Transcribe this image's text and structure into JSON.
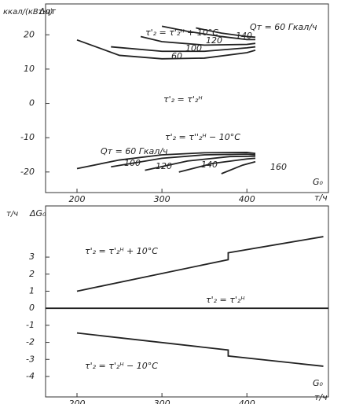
{
  "chart_data": [
    {
      "type": "line",
      "y_label": "ккал/(кВт·ч)",
      "y_symbol": "Δqт",
      "x_label": "G₀",
      "x_unit": "т/ч",
      "xlim": [
        163,
        496
      ],
      "ylim": [
        -26,
        29
      ],
      "xticks": [
        200,
        300,
        400
      ],
      "yticks": [
        20,
        10,
        0,
        -10,
        -20
      ],
      "annotations": [
        "τ'₂ = τ'₂ᴴ + 10°C",
        "τ'₂ = τ'₂ᴴ",
        "τ'₂ = τ''₂ᴴ − 10°C"
      ],
      "series": [
        {
          "name": "60",
          "x": [
            200,
            250,
            300,
            350,
            400,
            410
          ],
          "values": [
            18.5,
            14,
            13,
            13.2,
            14.8,
            15.5
          ]
        },
        {
          "name": "100",
          "x": [
            240,
            300,
            350,
            400,
            410
          ],
          "values": [
            16.5,
            15.2,
            15.2,
            16.2,
            16.5
          ]
        },
        {
          "name": "120",
          "x": [
            275,
            300,
            350,
            400,
            410
          ],
          "values": [
            19.5,
            18,
            17,
            17.2,
            17.5
          ]
        },
        {
          "name": "140",
          "x": [
            300,
            330,
            370,
            400,
            410
          ],
          "values": [
            22.5,
            21,
            19.5,
            18.6,
            18.6
          ]
        },
        {
          "name": "Qт = 60 Гкал/ч",
          "x": [
            340,
            370,
            400,
            410
          ],
          "values": [
            22,
            20.5,
            19.5,
            19.3
          ]
        },
        {
          "name": "Qт = 60 Гкал/ч",
          "x": [
            200,
            250,
            300,
            350,
            400,
            410
          ],
          "values": [
            -19,
            -16.5,
            -15,
            -14.4,
            -14.3,
            -14.6
          ]
        },
        {
          "name": "100",
          "x": [
            240,
            300,
            350,
            400,
            410
          ],
          "values": [
            -18.5,
            -16,
            -15,
            -14.8,
            -15
          ]
        },
        {
          "name": "120",
          "x": [
            280,
            330,
            380,
            410
          ],
          "values": [
            -19.5,
            -16.8,
            -15.5,
            -15.4
          ]
        },
        {
          "name": "140",
          "x": [
            320,
            360,
            400,
            410
          ],
          "values": [
            -20,
            -17.5,
            -16.2,
            -16
          ]
        },
        {
          "name": "160",
          "x": [
            370,
            395,
            410
          ],
          "values": [
            -20.5,
            -18,
            -17
          ]
        }
      ]
    },
    {
      "type": "line",
      "y_label": "т/ч",
      "y_symbol": "ΔG₀",
      "x_label": "G₀",
      "x_unit": "т/ч",
      "xlim": [
        163,
        496
      ],
      "ylim": [
        -5.2,
        6.0
      ],
      "xticks": [
        200,
        300,
        400
      ],
      "yticks": [
        3,
        2,
        1,
        0,
        -1,
        -2,
        -3,
        -4
      ],
      "annotations": [
        "τ'₂ = τ'₂ᴴ + 10°C",
        "τ'₂ = τ'₂ᴴ",
        "τ'₂ = τ'₂ᴴ − 10°C"
      ],
      "series": [
        {
          "x": [
            200,
            378,
            378,
            490
          ],
          "values": [
            1.0,
            2.85,
            3.25,
            4.2
          ]
        },
        {
          "x": [
            163,
            496
          ],
          "values": [
            0,
            0
          ]
        },
        {
          "x": [
            200,
            378,
            378,
            490
          ],
          "values": [
            -1.45,
            -2.45,
            -2.8,
            -3.4
          ]
        }
      ]
    }
  ]
}
